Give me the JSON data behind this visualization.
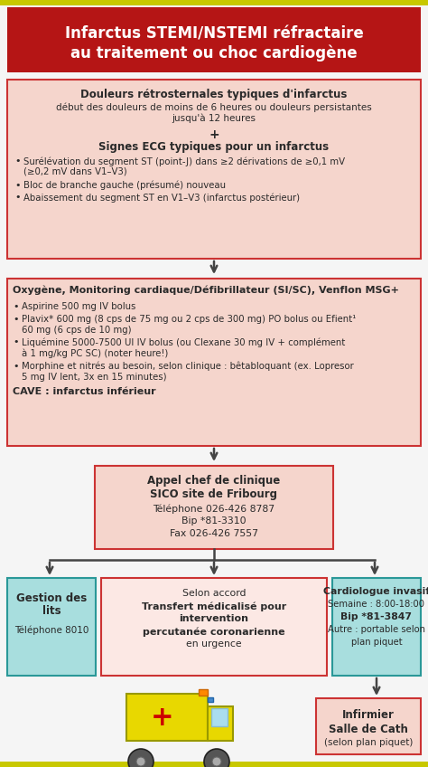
{
  "title_line1": "Infarctus STEMI/NSTEMI réfractaire",
  "title_line2": "au traitement ou choc cardiogène",
  "title_bg": "#b51515",
  "title_text_color": "#ffffff",
  "top_bar_color": "#c8c800",
  "bottom_bar_color": "#c8c800",
  "box_pink_bg": "#f5d5cc",
  "box_pink_border": "#cc3333",
  "box_teal_bg": "#a8dede",
  "box_teal_border": "#2a9898",
  "box_center_bg": "#fce8e4",
  "box_center_border": "#cc3333",
  "box1_title": "Douleurs rétrosternales typiques d'infarctus",
  "box1_text1a": "début des douleurs de moins de 6 heures ou douleurs persistantes",
  "box1_text1b": "jusqu'à 12 heures",
  "box1_plus": "+",
  "box1_subtitle": "Signes ECG typiques pour un infarctus",
  "box1_b1": "Surélévation du segment ST (point-J) dans ≥2 dérivations de ≥0,1 mV",
  "box1_b1b": "(≥0,2 mV dans V1–V3)",
  "box1_b2": "Bloc de branche gauche (présumé) nouveau",
  "box1_b3": "Abaissement du segment ST en V1–V3 (infarctus postérieur)",
  "box2_title": "Oxygène, Monitoring cardiaque/Défibrillateur (SI/SC), Venflon MSG+",
  "box2_b1": "Aspirine 500 mg IV bolus",
  "box2_b2a": "Plavix* 600 mg (8 cps de 75 mg ou 2 cps de 300 mg) PO bolus ou Efient¹",
  "box2_b2b": "60 mg (6 cps de 10 mg)",
  "box2_b3a": "Liquémine 5000-7500 UI IV bolus (ou Clexane 30 mg IV + complément",
  "box2_b3b": "à 1 mg/kg PC SC) (noter heure!)",
  "box2_b4a": "Morphine et nitrés au besoin, selon clinique : bêtabloquant (ex. Lopresor",
  "box2_b4b": "5 mg IV lent, 3x en 15 minutes)",
  "box2_cave": "CAVE : infarctus inférieur",
  "box3_l1": "Appel chef de clinique",
  "box3_l2": "SICO site de Fribourg",
  "box3_l3": "Téléphone 026-426 8787",
  "box3_l4": "Bip *81-3310",
  "box3_l5": "Fax 026-426 7557",
  "left_t1": "Gestion des",
  "left_t2": "lits",
  "left_t3": "Téléphone 8010",
  "center_t1": "Selon accord",
  "center_t2": "Transfert médicalisé pour",
  "center_t3": "intervention",
  "center_t4": "percutanée coronarienne",
  "center_t5": "en urgence",
  "right_t1": "Cardiologue invasif",
  "right_t2": "Semaine : 8:00-18:00",
  "right_t3": "Bip *81-3847",
  "right_t4": "Autre : portable selon",
  "right_t5": "plan piquet",
  "bot_t1": "Infirmier",
  "bot_t2": "Salle de Cath",
  "bot_t3": "(selon plan piquet)",
  "arrow_color": "#444444",
  "bg_color": "#f5f5f5",
  "text_dark": "#2a2a2a"
}
